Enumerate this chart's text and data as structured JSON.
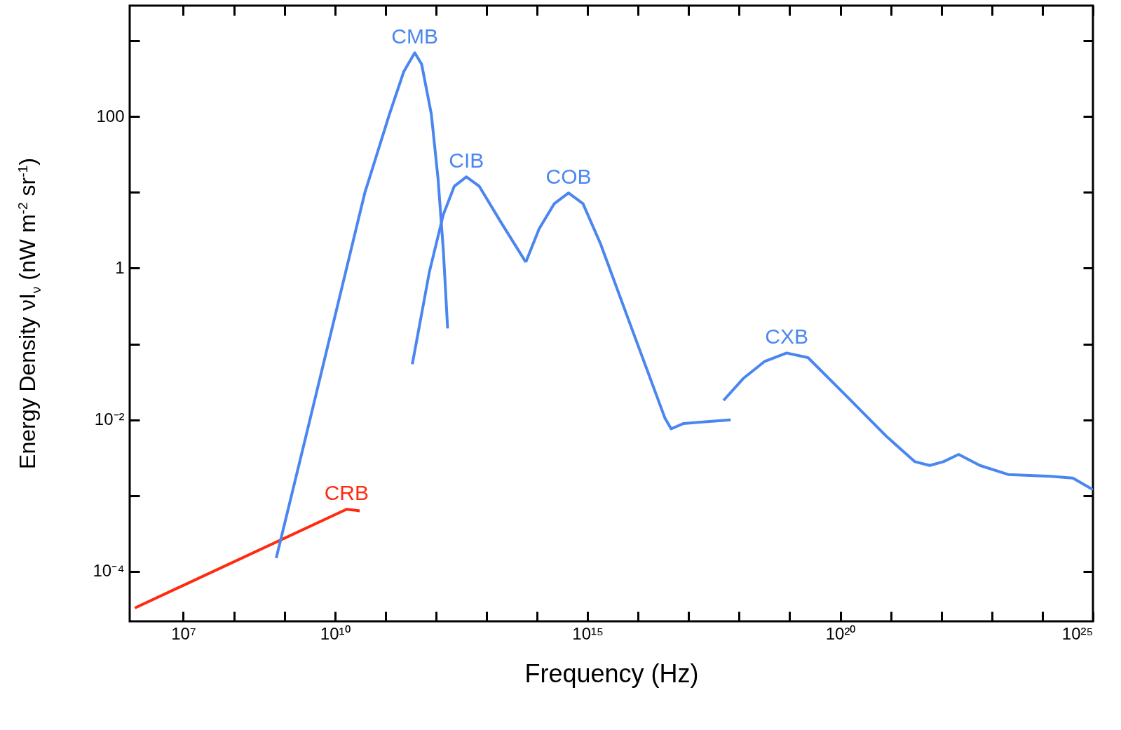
{
  "chart_data": {
    "type": "line",
    "xlabel": "Frequency (Hz)",
    "ylabel": "Energy Density νI$_{ν}$ (nW m$^{-2}$ sr$^{-1}$)",
    "log": "xy",
    "grid": false,
    "xlim": [
      870000,
      1e+25
    ],
    "ylim": [
      2.2e-05,
      2900
    ],
    "xticks": [
      {
        "value": 10000000.0,
        "label": "10⁷"
      },
      {
        "value": 100000000.0,
        "label": null
      },
      {
        "value": 1000000000.0,
        "label": null
      },
      {
        "value": 10000000000.0,
        "label": "10¹⁰"
      },
      {
        "value": 100000000000.0,
        "label": null
      },
      {
        "value": 1000000000000.0,
        "label": null
      },
      {
        "value": 10000000000000.0,
        "label": null
      },
      {
        "value": 100000000000000.0,
        "label": null
      },
      {
        "value": 1000000000000000.0,
        "label": "10¹⁵"
      },
      {
        "value": 1e+16,
        "label": null
      },
      {
        "value": 1e+17,
        "label": null
      },
      {
        "value": 1e+18,
        "label": null
      },
      {
        "value": 1e+19,
        "label": null
      },
      {
        "value": 1e+20,
        "label": "10²⁰"
      },
      {
        "value": 1e+21,
        "label": null
      },
      {
        "value": 1e+22,
        "label": null
      },
      {
        "value": 1e+23,
        "label": null
      },
      {
        "value": 1e+24,
        "label": null
      },
      {
        "value": 1e+25,
        "label": "10²⁵"
      }
    ],
    "yticks": [
      {
        "value": 0.0001,
        "label": "10⁻⁴"
      },
      {
        "value": 0.001,
        "label": null
      },
      {
        "value": 0.01,
        "label": "10⁻²"
      },
      {
        "value": 0.1,
        "label": null
      },
      1,
      {
        "value": 10,
        "label": null
      },
      100,
      {
        "value": 1000,
        "label": null
      }
    ],
    "series": [
      {
        "name": "CRB",
        "color": "#ff2a0f",
        "x": [
          1100000.0,
          17000000000.0,
          31000000000.0
        ],
        "values": [
          3.3e-05,
          0.00066,
          0.00063
        ]
      },
      {
        "name": "CMB",
        "color": "#4a86f0",
        "x": [
          690000000.0,
          2900000000.0,
          11000000000.0,
          39000000000.0,
          120000000000.0,
          230000000000.0,
          380000000000.0,
          520000000000.0,
          810000000000.0,
          1100000000000.0,
          1400000000000.0,
          1700000000000.0
        ],
        "values": [
          0.00015,
          0.0076,
          0.3,
          9.8,
          107,
          389,
          692,
          490,
          107,
          15,
          1.7,
          0.16
        ]
      },
      {
        "name": "CIB",
        "color": "#4a86f0",
        "x": [
          340000000000.0,
          740000000000.0,
          1400000000000.0,
          2300000000000.0,
          4000000000000.0,
          7200000000000.0,
          19000000000000.0,
          60000000000000.0
        ],
        "values": [
          0.054,
          0.89,
          5.1,
          12,
          16,
          12,
          4.1,
          1.2
        ]
      },
      {
        "name": "COB",
        "color": "#4a86f0",
        "x": [
          60000000000000.0,
          110000000000000.0,
          220000000000000.0,
          420000000000000.0,
          810000000000000.0,
          1800000000000000.0,
          6800000000000000.0,
          3.4e+16,
          4.5e+16,
          7.8e+16,
          6.8e+17
        ],
        "values": [
          1.2,
          3.3,
          7.1,
          9.8,
          7.1,
          2.1,
          0.19,
          0.0105,
          0.0076,
          0.0089,
          0.01
        ]
      },
      {
        "name": "CXB",
        "color": "#4a86f0",
        "x": [
          4.9e+17,
          1.2e+18,
          3.2e+18,
          8.7e+18,
          2.3e+19,
          1.2e+20,
          8.3e+20,
          3e+21,
          5.9e+21,
          1.1e+22,
          2.2e+22,
          5.8e+22,
          2.1e+23,
          1.5e+24,
          4e+24,
          1e+25
        ],
        "values": [
          0.018,
          0.035,
          0.059,
          0.076,
          0.066,
          0.022,
          0.006,
          0.0028,
          0.0025,
          0.0028,
          0.0035,
          0.0025,
          0.0019,
          0.0018,
          0.0017,
          0.0012
        ]
      }
    ]
  }
}
